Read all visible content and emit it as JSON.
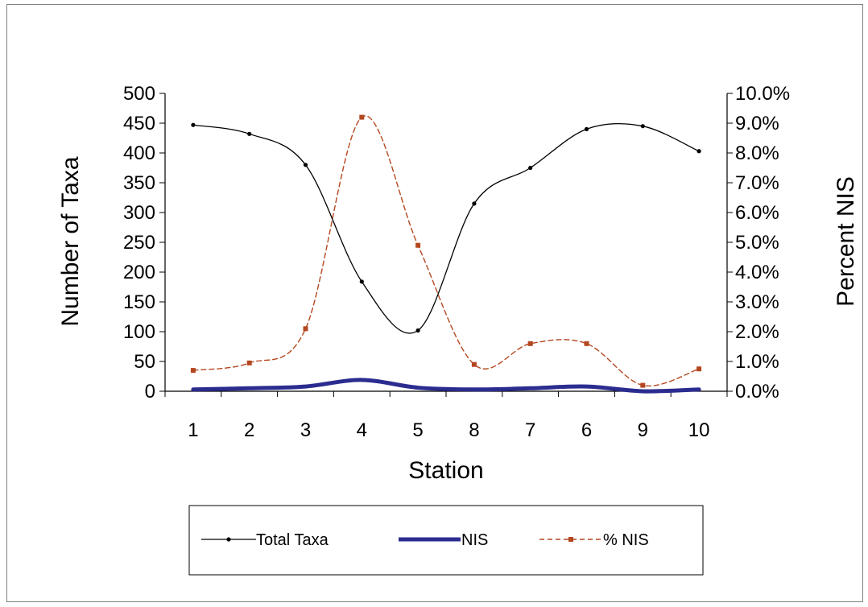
{
  "chart_data": {
    "type": "line",
    "title": "",
    "categories": [
      "1",
      "2",
      "3",
      "4",
      "5",
      "8",
      "7",
      "6",
      "9",
      "10"
    ],
    "xlabel": "Station",
    "ylabel": "Number of Taxa",
    "y2label": "Percent NIS",
    "ylim": [
      0,
      500
    ],
    "y2lim": [
      0,
      0.1
    ],
    "yticks": [
      "0",
      "50",
      "100",
      "150",
      "200",
      "250",
      "300",
      "350",
      "400",
      "450",
      "500"
    ],
    "y2ticks": [
      "0.0%",
      "1.0%",
      "2.0%",
      "3.0%",
      "4.0%",
      "5.0%",
      "6.0%",
      "7.0%",
      "8.0%",
      "9.0%",
      "10.0%"
    ],
    "series": [
      {
        "name": "Total Taxa",
        "axis": "left",
        "color": "#000000",
        "style": "solid-thin-dot-markers",
        "values": [
          447,
          432,
          380,
          184,
          102,
          315,
          375,
          440,
          445,
          403
        ]
      },
      {
        "name": "NIS",
        "axis": "left",
        "color": "#2b2c8f",
        "style": "solid-thick",
        "values": [
          3,
          5,
          8,
          19,
          6,
          3,
          5,
          8,
          0,
          3
        ]
      },
      {
        "name": "% NIS",
        "axis": "right",
        "color": "#b4471f",
        "style": "dashed-square-markers",
        "values": [
          0.007,
          0.0095,
          0.021,
          0.092,
          0.049,
          0.009,
          0.016,
          0.016,
          0.002,
          0.0075
        ]
      }
    ],
    "legend_position": "bottom",
    "grid": false
  }
}
